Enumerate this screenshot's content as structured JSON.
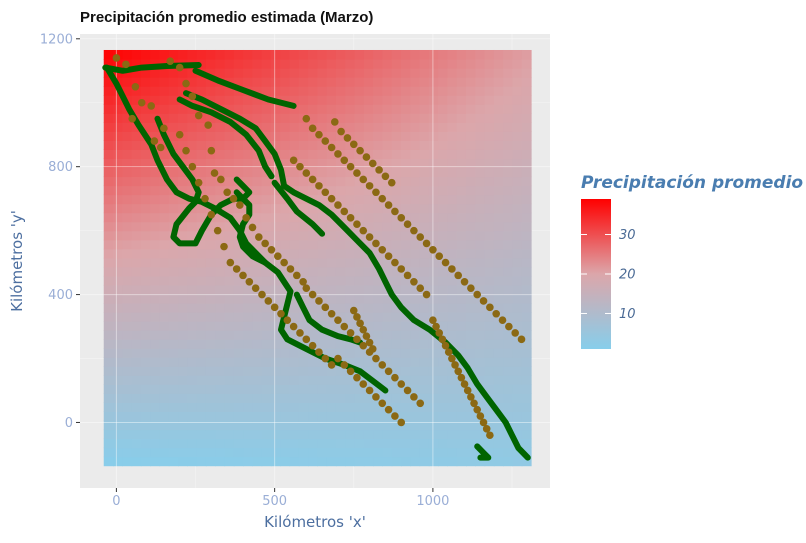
{
  "chart_data": {
    "type": "heatmap",
    "title": "Precipitación promedio estimada (Marzo)",
    "xlabel": "Kilómetros 'x'",
    "ylabel": "Kilómetros 'y'",
    "xlim": [
      -115,
      1370
    ],
    "ylim": [
      -205,
      1215
    ],
    "xticks": [
      {
        "value": 0,
        "label": "0"
      },
      {
        "value": 500,
        "label": "500"
      },
      {
        "value": 1000,
        "label": "1000"
      }
    ],
    "yticks": [
      {
        "value": 0,
        "label": "0"
      },
      {
        "value": 400,
        "label": "400"
      },
      {
        "value": 800,
        "label": "800"
      },
      {
        "value": 1200,
        "label": "1200"
      }
    ],
    "grid": true,
    "legend": {
      "title": "Precipitación promedio",
      "position": "right",
      "min": 1,
      "max": 39,
      "breaks": [
        {
          "value": 10,
          "label": "10"
        },
        {
          "value": 20,
          "label": "20"
        },
        {
          "value": 30,
          "label": "30"
        }
      ],
      "colors": {
        "low": "#87ceeb",
        "mid": "#dca6aa",
        "high": "#ff0000"
      }
    },
    "surface": {
      "x_range": [
        -40,
        1310
      ],
      "y_range": [
        -135,
        1165
      ],
      "corners": {
        "bottom_left": 1,
        "bottom_right": 3,
        "top_left": 39,
        "top_right": 21
      }
    },
    "coast_color": "#006400",
    "station_color": "#8b6914",
    "coastlines": [
      [
        [
          -35,
          1110
        ],
        [
          20,
          1100
        ],
        [
          80,
          1110
        ],
        [
          160,
          1115
        ],
        [
          260,
          1118
        ]
      ],
      [
        [
          -30,
          1110
        ],
        [
          0,
          1060
        ],
        [
          40,
          980
        ],
        [
          70,
          930
        ],
        [
          110,
          870
        ],
        [
          130,
          820
        ],
        [
          160,
          760
        ],
        [
          190,
          720
        ],
        [
          230,
          700
        ],
        [
          270,
          690
        ],
        [
          310,
          670
        ],
        [
          360,
          640
        ],
        [
          390,
          600
        ],
        [
          410,
          560
        ],
        [
          440,
          530
        ],
        [
          470,
          500
        ],
        [
          510,
          470
        ],
        [
          530,
          440
        ],
        [
          550,
          410
        ],
        [
          540,
          370
        ],
        [
          530,
          330
        ],
        [
          520,
          290
        ],
        [
          540,
          260
        ],
        [
          600,
          230
        ],
        [
          660,
          200
        ],
        [
          720,
          180
        ],
        [
          770,
          160
        ],
        [
          810,
          130
        ],
        [
          850,
          100
        ]
      ],
      [
        [
          130,
          950
        ],
        [
          150,
          900
        ],
        [
          180,
          840
        ],
        [
          210,
          800
        ],
        [
          240,
          760
        ],
        [
          260,
          720
        ],
        [
          250,
          690
        ],
        [
          230,
          670
        ],
        [
          190,
          620
        ],
        [
          180,
          580
        ],
        [
          200,
          560
        ],
        [
          250,
          560
        ],
        [
          270,
          600
        ],
        [
          300,
          650
        ],
        [
          330,
          680
        ],
        [
          370,
          700
        ],
        [
          400,
          700
        ],
        [
          420,
          680
        ],
        [
          420,
          650
        ],
        [
          400,
          620
        ],
        [
          390,
          580
        ],
        [
          400,
          550
        ],
        [
          430,
          520
        ],
        [
          470,
          500
        ]
      ],
      [
        [
          220,
          1030
        ],
        [
          270,
          1010
        ],
        [
          330,
          980
        ],
        [
          390,
          950
        ],
        [
          440,
          920
        ],
        [
          470,
          880
        ],
        [
          500,
          840
        ],
        [
          520,
          790
        ],
        [
          530,
          740
        ],
        [
          560,
          720
        ],
        [
          600,
          700
        ],
        [
          640,
          680
        ],
        [
          680,
          650
        ],
        [
          720,
          610
        ],
        [
          760,
          570
        ],
        [
          800,
          530
        ],
        [
          830,
          480
        ],
        [
          850,
          440
        ],
        [
          870,
          400
        ],
        [
          900,
          360
        ],
        [
          940,
          320
        ],
        [
          990,
          290
        ],
        [
          1040,
          250
        ],
        [
          1080,
          210
        ],
        [
          1110,
          170
        ],
        [
          1140,
          120
        ],
        [
          1170,
          80
        ],
        [
          1200,
          40
        ],
        [
          1230,
          0
        ],
        [
          1250,
          -40
        ],
        [
          1270,
          -80
        ],
        [
          1300,
          -110
        ]
      ],
      [
        [
          200,
          1010
        ],
        [
          240,
          990
        ],
        [
          300,
          970
        ],
        [
          360,
          940
        ],
        [
          410,
          900
        ],
        [
          450,
          850
        ],
        [
          470,
          800
        ],
        [
          490,
          770
        ]
      ],
      [
        [
          250,
          1100
        ],
        [
          320,
          1070
        ],
        [
          400,
          1040
        ],
        [
          480,
          1010
        ],
        [
          560,
          990
        ]
      ],
      [
        [
          1140,
          -75
        ],
        [
          1160,
          -95
        ],
        [
          1175,
          -110
        ],
        [
          1150,
          -110
        ]
      ],
      [
        [
          380,
          760
        ],
        [
          400,
          740
        ],
        [
          420,
          720
        ],
        [
          400,
          700
        ],
        [
          380,
          720
        ]
      ],
      [
        [
          500,
          750
        ],
        [
          540,
          700
        ],
        [
          570,
          660
        ],
        [
          620,
          620
        ],
        [
          650,
          590
        ]
      ],
      [
        [
          570,
          400
        ],
        [
          590,
          360
        ],
        [
          610,
          320
        ],
        [
          650,
          290
        ],
        [
          700,
          270
        ],
        [
          740,
          260
        ],
        [
          770,
          250
        ]
      ]
    ],
    "stations": [
      [
        0,
        1140
      ],
      [
        30,
        1120
      ],
      [
        60,
        1050
      ],
      [
        80,
        1000
      ],
      [
        50,
        950
      ],
      [
        110,
        990
      ],
      [
        120,
        880
      ],
      [
        150,
        920
      ],
      [
        140,
        860
      ],
      [
        170,
        1130
      ],
      [
        200,
        1110
      ],
      [
        220,
        1060
      ],
      [
        240,
        1020
      ],
      [
        260,
        960
      ],
      [
        290,
        930
      ],
      [
        300,
        850
      ],
      [
        310,
        780
      ],
      [
        330,
        760
      ],
      [
        350,
        720
      ],
      [
        370,
        700
      ],
      [
        390,
        680
      ],
      [
        410,
        640
      ],
      [
        430,
        610
      ],
      [
        450,
        580
      ],
      [
        470,
        560
      ],
      [
        490,
        540
      ],
      [
        510,
        520
      ],
      [
        530,
        500
      ],
      [
        550,
        480
      ],
      [
        570,
        460
      ],
      [
        590,
        440
      ],
      [
        600,
        420
      ],
      [
        620,
        400
      ],
      [
        640,
        380
      ],
      [
        660,
        360
      ],
      [
        680,
        340
      ],
      [
        700,
        320
      ],
      [
        720,
        300
      ],
      [
        740,
        280
      ],
      [
        760,
        260
      ],
      [
        780,
        240
      ],
      [
        800,
        220
      ],
      [
        820,
        200
      ],
      [
        840,
        180
      ],
      [
        860,
        160
      ],
      [
        880,
        140
      ],
      [
        900,
        120
      ],
      [
        920,
        100
      ],
      [
        940,
        80
      ],
      [
        960,
        60
      ],
      [
        600,
        950
      ],
      [
        620,
        920
      ],
      [
        640,
        900
      ],
      [
        660,
        880
      ],
      [
        680,
        860
      ],
      [
        700,
        840
      ],
      [
        720,
        820
      ],
      [
        740,
        800
      ],
      [
        760,
        780
      ],
      [
        780,
        760
      ],
      [
        800,
        740
      ],
      [
        820,
        720
      ],
      [
        840,
        700
      ],
      [
        860,
        680
      ],
      [
        880,
        660
      ],
      [
        900,
        640
      ],
      [
        920,
        620
      ],
      [
        940,
        600
      ],
      [
        960,
        580
      ],
      [
        980,
        560
      ],
      [
        1000,
        540
      ],
      [
        1020,
        520
      ],
      [
        1040,
        500
      ],
      [
        1060,
        480
      ],
      [
        1080,
        460
      ],
      [
        1100,
        440
      ],
      [
        1120,
        420
      ],
      [
        1140,
        400
      ],
      [
        1160,
        380
      ],
      [
        1180,
        360
      ],
      [
        1200,
        340
      ],
      [
        1220,
        320
      ],
      [
        1240,
        300
      ],
      [
        1260,
        280
      ],
      [
        1280,
        260
      ],
      [
        1000,
        320
      ],
      [
        1010,
        300
      ],
      [
        1020,
        280
      ],
      [
        1030,
        260
      ],
      [
        1040,
        240
      ],
      [
        1050,
        220
      ],
      [
        1060,
        200
      ],
      [
        1070,
        180
      ],
      [
        1080,
        160
      ],
      [
        1090,
        140
      ],
      [
        1100,
        120
      ],
      [
        1110,
        100
      ],
      [
        1120,
        80
      ],
      [
        1130,
        60
      ],
      [
        1140,
        40
      ],
      [
        1150,
        20
      ],
      [
        1160,
        0
      ],
      [
        1170,
        -20
      ],
      [
        1180,
        -40
      ],
      [
        750,
        350
      ],
      [
        760,
        330
      ],
      [
        770,
        310
      ],
      [
        780,
        290
      ],
      [
        790,
        270
      ],
      [
        800,
        250
      ],
      [
        810,
        230
      ],
      [
        700,
        200
      ],
      [
        720,
        180
      ],
      [
        740,
        160
      ],
      [
        760,
        140
      ],
      [
        780,
        120
      ],
      [
        800,
        100
      ],
      [
        820,
        80
      ],
      [
        840,
        60
      ],
      [
        860,
        40
      ],
      [
        880,
        20
      ],
      [
        900,
        0
      ],
      [
        690,
        940
      ],
      [
        710,
        910
      ],
      [
        730,
        890
      ],
      [
        750,
        870
      ],
      [
        770,
        850
      ],
      [
        790,
        830
      ],
      [
        810,
        810
      ],
      [
        830,
        790
      ],
      [
        850,
        770
      ],
      [
        870,
        750
      ],
      [
        560,
        820
      ],
      [
        580,
        800
      ],
      [
        600,
        780
      ],
      [
        620,
        760
      ],
      [
        640,
        740
      ],
      [
        660,
        720
      ],
      [
        680,
        700
      ],
      [
        700,
        680
      ],
      [
        720,
        660
      ],
      [
        740,
        640
      ],
      [
        760,
        620
      ],
      [
        780,
        600
      ],
      [
        800,
        580
      ],
      [
        820,
        560
      ],
      [
        840,
        540
      ],
      [
        860,
        520
      ],
      [
        880,
        500
      ],
      [
        900,
        480
      ],
      [
        920,
        460
      ],
      [
        940,
        440
      ],
      [
        960,
        420
      ],
      [
        980,
        400
      ],
      [
        200,
        900
      ],
      [
        220,
        850
      ],
      [
        240,
        800
      ],
      [
        260,
        750
      ],
      [
        280,
        700
      ],
      [
        300,
        650
      ],
      [
        320,
        600
      ],
      [
        340,
        550
      ],
      [
        360,
        500
      ],
      [
        380,
        480
      ],
      [
        400,
        460
      ],
      [
        420,
        440
      ],
      [
        440,
        420
      ],
      [
        460,
        400
      ],
      [
        480,
        380
      ],
      [
        500,
        360
      ],
      [
        520,
        340
      ],
      [
        540,
        320
      ],
      [
        560,
        300
      ],
      [
        580,
        280
      ],
      [
        600,
        260
      ],
      [
        620,
        240
      ],
      [
        640,
        220
      ],
      [
        660,
        200
      ],
      [
        680,
        180
      ]
    ]
  }
}
